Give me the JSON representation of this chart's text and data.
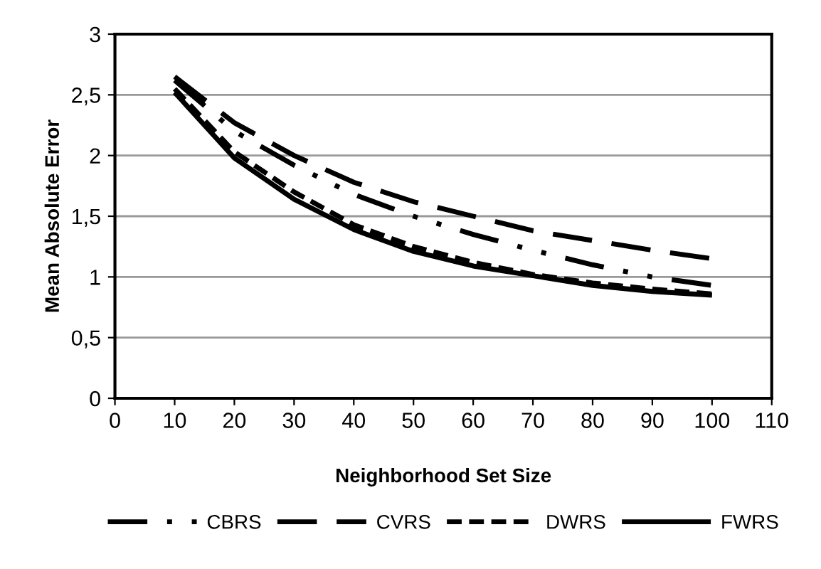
{
  "chart_data": {
    "type": "line",
    "xlabel": "Neighborhood Set Size",
    "ylabel": "Mean Absolute Error",
    "x": [
      10,
      20,
      30,
      40,
      50,
      60,
      70,
      80,
      90,
      100
    ],
    "xlim": [
      0,
      110
    ],
    "xticks": [
      0,
      10,
      20,
      30,
      40,
      50,
      60,
      70,
      80,
      90,
      100,
      110
    ],
    "ylim": [
      0,
      3
    ],
    "yticks": [
      0,
      {
        "value": 0.5,
        "label": "0,5"
      },
      1,
      {
        "value": 1.5,
        "label": "1,5"
      },
      2,
      {
        "value": 2.5,
        "label": "2,5"
      },
      3
    ],
    "grid": "y",
    "legend": "bottom",
    "marker": "none",
    "series": [
      {
        "name": "CBRS",
        "color": "#000000",
        "line_style": "dashdotdot",
        "values": [
          2.62,
          2.2,
          1.92,
          1.68,
          1.5,
          1.35,
          1.22,
          1.1,
          1.0,
          0.93
        ]
      },
      {
        "name": "CVRS",
        "color": "#000000",
        "line_style": "longdash",
        "values": [
          2.65,
          2.27,
          2.0,
          1.78,
          1.62,
          1.5,
          1.38,
          1.3,
          1.22,
          1.15
        ]
      },
      {
        "name": "DWRS",
        "color": "#000000",
        "line_style": "dashed",
        "values": [
          2.55,
          2.03,
          1.7,
          1.43,
          1.25,
          1.12,
          1.02,
          0.95,
          0.9,
          0.86
        ]
      },
      {
        "name": "FWRS",
        "color": "#000000",
        "line_style": "solid",
        "values": [
          2.52,
          1.98,
          1.64,
          1.39,
          1.21,
          1.09,
          1.01,
          0.93,
          0.88,
          0.85
        ]
      }
    ]
  }
}
